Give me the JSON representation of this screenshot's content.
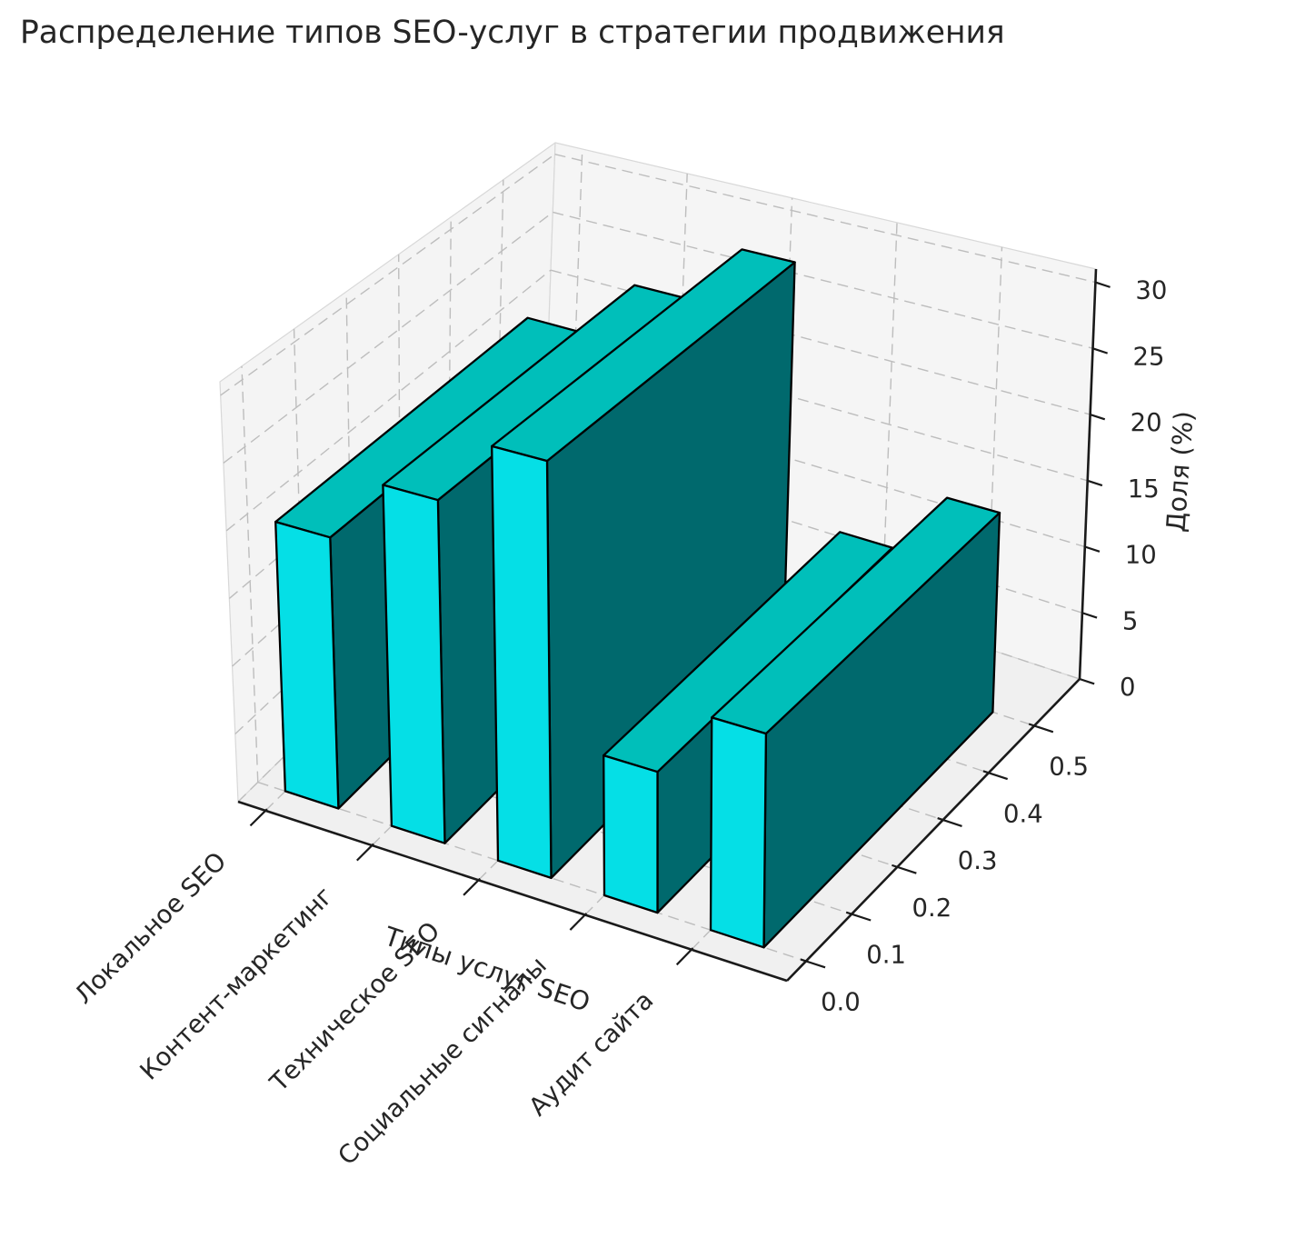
{
  "title": "Распределение типов SEO-услуг в стратегии продвижения",
  "chart_data": {
    "type": "bar",
    "projection": "3d",
    "categories": [
      "Локальное SEO",
      "Контент-маркетинг",
      "Техническое SEO",
      "Социальные сигналы",
      "Аудит сайта"
    ],
    "values": [
      20,
      25,
      30,
      10,
      15
    ],
    "title": "Распределение типов SEO-услуг в стратегии продвижения",
    "xlabel": "Типы услуг SEO",
    "ylabel": "",
    "zlabel": "Доля (%)",
    "x_tick_labels": [
      "Локальное SEO",
      "Контент-маркетинг",
      "Техническое SEO",
      "Социальные сигналы",
      "Аудит сайта"
    ],
    "y_tick_labels": [
      "0.0",
      "0.1",
      "0.2",
      "0.3",
      "0.4",
      "0.5"
    ],
    "z_tick_labels": [
      "0",
      "5",
      "10",
      "15",
      "20",
      "25",
      "30"
    ],
    "z_ticks": [
      0,
      5,
      10,
      15,
      20,
      25,
      30
    ],
    "zlim": [
      0,
      31
    ],
    "grid": true,
    "colors": {
      "bar_front": "#05dfe6",
      "bar_top": "#00bfba",
      "bar_side": "#00696d",
      "bar_edge": "#000000",
      "pane_floor": "#f0f0f0",
      "pane_left": "#f4f4f4",
      "pane_right": "#f5f5f5",
      "pane_edge": "#d8d8d8",
      "grid_line": "#bdbdbd",
      "axis_line": "#1a1a1a",
      "text": "#262626"
    }
  }
}
